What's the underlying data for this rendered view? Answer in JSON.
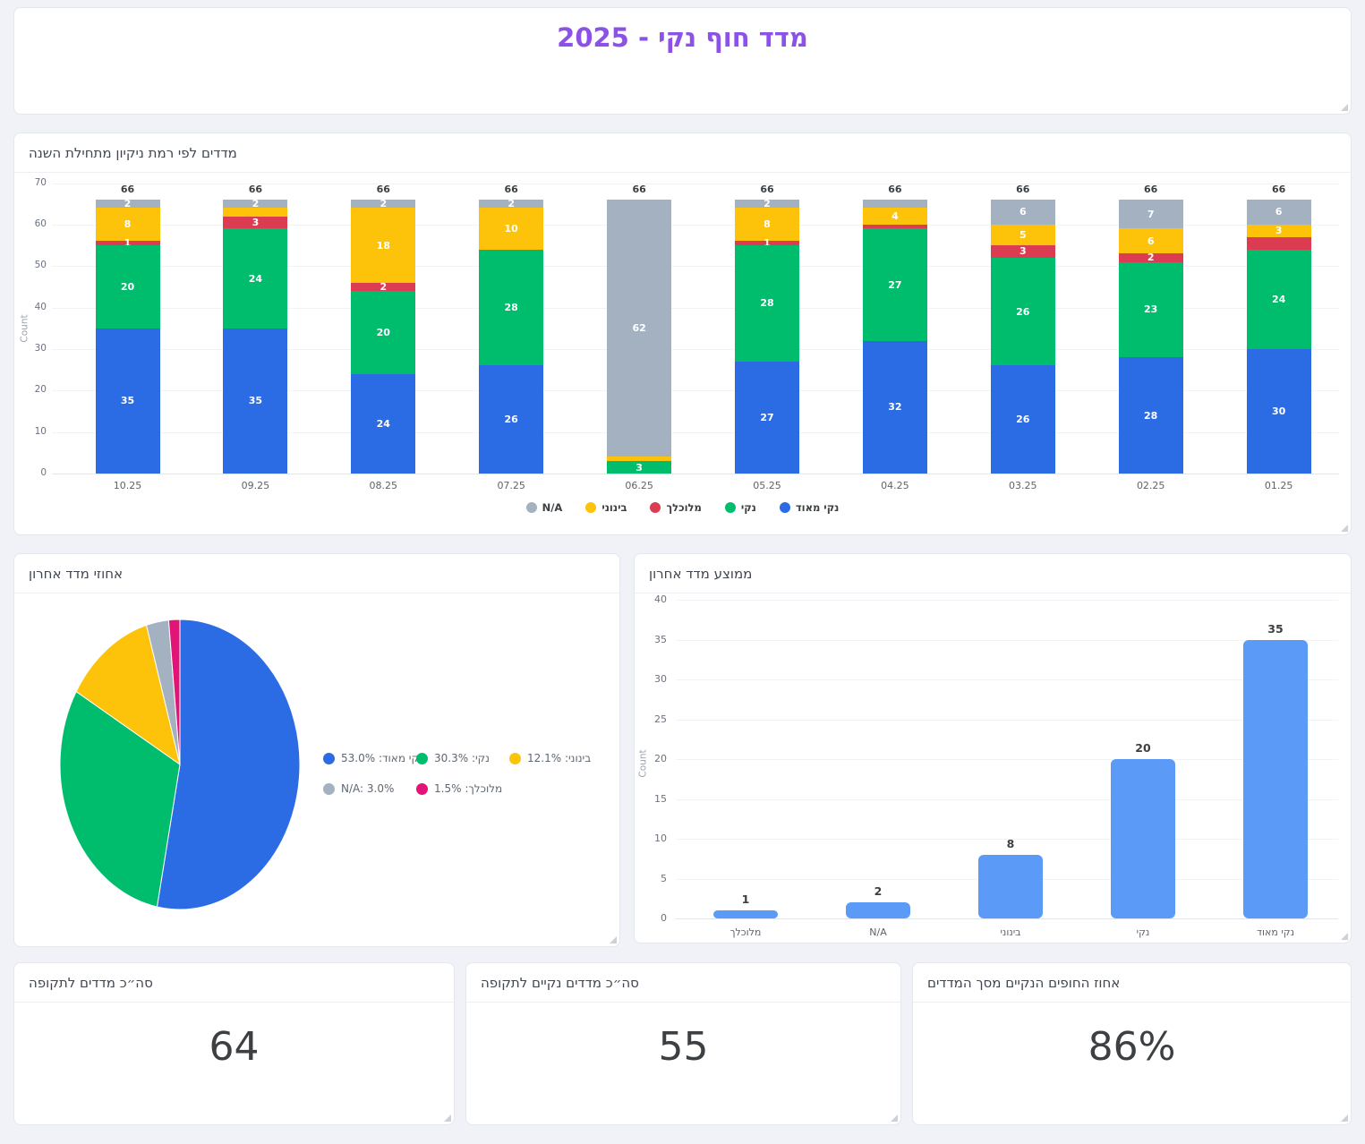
{
  "title": {
    "text": "מדד חוף נקי - 2025"
  },
  "panels": {
    "stacked": {
      "title": "מדדים לפי רמת ניקיון מתחילת השנה"
    },
    "pie": {
      "title": "אחוזי מדד אחרון"
    },
    "avg": {
      "title": "ממוצע מדד אחרון"
    }
  },
  "kpis": [
    {
      "title": "סה״כ מדדים לתקופה",
      "value": "64"
    },
    {
      "title": "סה״כ מדדים נקיים לתקופה",
      "value": "55"
    },
    {
      "title": "אחוז החופים הנקיים מסך המדדים",
      "value": "86%"
    }
  ],
  "colors": {
    "very_clean": "#2b6ce5",
    "clean": "#00bd6e",
    "medium": "#fdc30b",
    "dirty": "#dc3c51",
    "na": "#a4b1c0",
    "dirty_pie": "#e31478",
    "avg_bar": "#5b9bf7",
    "title": "#8c52e8"
  },
  "chart_data": [
    {
      "type": "bar",
      "stacked": true,
      "title": "מדדים לפי רמת ניקיון מתחילת השנה",
      "ylabel": "Count",
      "ylim": [
        0,
        70
      ],
      "ytick_step": 10,
      "grid": true,
      "legend_position": "bottom",
      "categories": [
        "10.25",
        "09.25",
        "08.25",
        "07.25",
        "06.25",
        "05.25",
        "04.25",
        "03.25",
        "02.25",
        "01.25"
      ],
      "series": [
        {
          "name": "נקי מאוד",
          "color": "very_clean",
          "values": [
            35,
            35,
            24,
            26,
            0,
            27,
            32,
            26,
            28,
            30
          ],
          "labels": [
            "35",
            "35",
            "24",
            "26",
            "",
            "27",
            "32",
            "26",
            "28",
            "30"
          ]
        },
        {
          "name": "נקי",
          "color": "clean",
          "values": [
            20,
            24,
            20,
            28,
            3,
            28,
            27,
            26,
            23,
            24
          ],
          "labels": [
            "20",
            "24",
            "20",
            "28",
            "3",
            "28",
            "27",
            "26",
            "23",
            "24"
          ]
        },
        {
          "name": "מלוכלך",
          "color": "dirty",
          "values": [
            1,
            3,
            2,
            0,
            0,
            1,
            1,
            3,
            2,
            3
          ],
          "labels": [
            "1",
            "3",
            "2",
            "",
            "",
            "1",
            "",
            "3",
            "2",
            ""
          ]
        },
        {
          "name": "בינוני",
          "color": "medium",
          "values": [
            8,
            2,
            18,
            10,
            1,
            8,
            4,
            5,
            6,
            3
          ],
          "labels": [
            "8",
            "",
            "18",
            "10",
            "",
            "8",
            "4",
            "5",
            "6",
            "3"
          ]
        },
        {
          "name": "N/A",
          "color": "na",
          "values": [
            2,
            2,
            2,
            2,
            62,
            2,
            2,
            6,
            7,
            6
          ],
          "labels": [
            "2",
            "2",
            "2",
            "2",
            "62",
            "2",
            "",
            "6",
            "7",
            "6"
          ]
        }
      ],
      "totals": [
        "66",
        "66",
        "66",
        "66",
        "66",
        "66",
        "66",
        "66",
        "66",
        "66"
      ],
      "legend": [
        {
          "label": "N/A",
          "color": "na"
        },
        {
          "label": "בינוני",
          "color": "medium"
        },
        {
          "label": "מלוכלך",
          "color": "dirty"
        },
        {
          "label": "נקי",
          "color": "clean"
        },
        {
          "label": "נקי מאוד",
          "color": "very_clean"
        }
      ]
    },
    {
      "type": "pie",
      "title": "אחוזי מדד אחרון",
      "legend_position": "right",
      "slices": [
        {
          "label": "נקי מאוד",
          "pct": 53.0,
          "color": "very_clean",
          "legend": "נקי מאוד: 53.0%"
        },
        {
          "label": "נקי",
          "pct": 30.3,
          "color": "clean",
          "legend": "נקי: 30.3%"
        },
        {
          "label": "בינוני",
          "pct": 12.1,
          "color": "medium",
          "legend": "בינוני: 12.1%"
        },
        {
          "label": "N/A",
          "pct": 3.0,
          "color": "na",
          "legend": "N/A: 3.0%"
        },
        {
          "label": "מלוכלך",
          "pct": 1.5,
          "color": "dirty_pie",
          "legend": "מלוכלך: 1.5%"
        }
      ]
    },
    {
      "type": "bar",
      "title": "ממוצע מדד אחרון",
      "ylabel": "Count",
      "ylim": [
        0,
        40
      ],
      "ytick_step": 5,
      "grid": true,
      "categories": [
        "מלוכלך",
        "N/A",
        "בינוני",
        "נקי",
        "נקי מאוד"
      ],
      "values": [
        1,
        2,
        8,
        20,
        35
      ],
      "labels": [
        "1",
        "2",
        "8",
        "20",
        "35"
      ]
    }
  ]
}
